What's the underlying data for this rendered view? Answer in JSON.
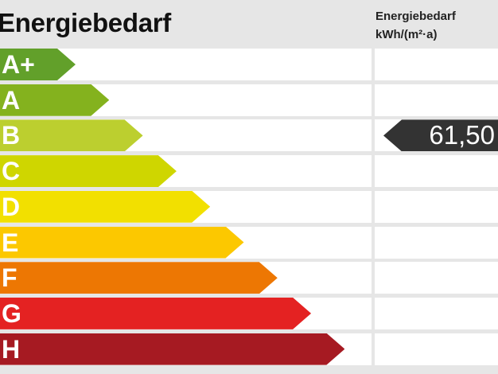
{
  "chart_data": {
    "type": "bar",
    "title": "Energiebedarf",
    "unit_header": [
      "Energiebedarf",
      "kWh/(m²·a)"
    ],
    "categories": [
      "A+",
      "A",
      "B",
      "C",
      "D",
      "E",
      "F",
      "G",
      "H"
    ],
    "colors": [
      "#62a02a",
      "#84b21e",
      "#bccf2f",
      "#cfd600",
      "#f2e000",
      "#fcc800",
      "#ed7703",
      "#e42222",
      "#a61a22"
    ],
    "indicator": {
      "category": "B",
      "value": "61,50",
      "color": "#333333"
    }
  }
}
